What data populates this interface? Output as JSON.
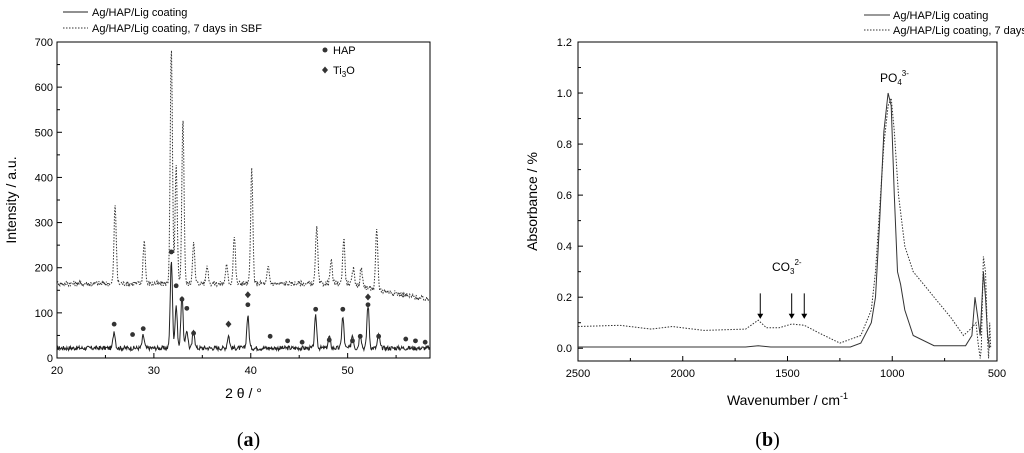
{
  "chart_data": [
    {
      "type": "line",
      "panel_label": "a",
      "xlabel": "2 θ / °",
      "ylabel": "Intensity / a.u.",
      "xlim": [
        20,
        58.5
      ],
      "ylim": [
        0,
        700
      ],
      "xticks": [
        "20",
        "30",
        "40",
        "50"
      ],
      "yticks": [
        "0",
        "100",
        "200",
        "300",
        "400",
        "500",
        "600",
        "700"
      ],
      "legend": [
        "Ag/HAP/Lig coating",
        "Ag/HAP/Lig coating, 7 days in SBF"
      ],
      "marker_legend": [
        {
          "symbol": "circle",
          "label": "HAP"
        },
        {
          "symbol": "diamond",
          "label": "Ti3O",
          "label_main": "Ti",
          "label_sub": "3",
          "label_tail": "O"
        }
      ],
      "series": [
        {
          "name": "Ag/HAP/Lig coating",
          "style": "solid",
          "baseline": 22,
          "peaks": [
            [
              25.9,
              38
            ],
            [
              28.9,
              28
            ],
            [
              31.8,
              195
            ],
            [
              32.3,
              95
            ],
            [
              32.9,
              118
            ],
            [
              33.4,
              40
            ],
            [
              34.1,
              40
            ],
            [
              37.7,
              28
            ],
            [
              39.7,
              72
            ],
            [
              46.7,
              70
            ],
            [
              48.1,
              26
            ],
            [
              49.5,
              68
            ],
            [
              50.5,
              30
            ],
            [
              51.3,
              33
            ],
            [
              52.1,
              95
            ],
            [
              53.2,
              30
            ]
          ]
        },
        {
          "name": "Ag/HAP/Lig coating, 7 days in SBF",
          "style": "dotted",
          "baseline": 165,
          "end_value": 128,
          "peaks": [
            [
              26.0,
              175
            ],
            [
              29.0,
              95
            ],
            [
              31.8,
              525
            ],
            [
              32.3,
              260
            ],
            [
              33.0,
              370
            ],
            [
              34.1,
              90
            ],
            [
              35.5,
              40
            ],
            [
              37.5,
              40
            ],
            [
              38.3,
              105
            ],
            [
              40.1,
              255
            ],
            [
              41.8,
              35
            ],
            [
              46.8,
              125
            ],
            [
              48.3,
              50
            ],
            [
              49.6,
              100
            ],
            [
              50.6,
              35
            ],
            [
              51.4,
              40
            ],
            [
              53.0,
              130
            ]
          ]
        }
      ],
      "hap_markers": [
        [
          25.9,
          75
        ],
        [
          27.8,
          52
        ],
        [
          28.9,
          65
        ],
        [
          31.8,
          235
        ],
        [
          32.3,
          160
        ],
        [
          32.9,
          130
        ],
        [
          33.4,
          110
        ],
        [
          34.1,
          55
        ],
        [
          39.7,
          118
        ],
        [
          42.0,
          48
        ],
        [
          43.8,
          38
        ],
        [
          45.3,
          35
        ],
        [
          46.7,
          108
        ],
        [
          48.1,
          40
        ],
        [
          49.5,
          108
        ],
        [
          50.5,
          38
        ],
        [
          51.3,
          48
        ],
        [
          52.1,
          118
        ],
        [
          53.2,
          48
        ],
        [
          56.0,
          42
        ],
        [
          57.0,
          38
        ],
        [
          58.0,
          35
        ]
      ],
      "ti3o_markers": [
        [
          37.7,
          75
        ],
        [
          39.7,
          140
        ],
        [
          52.1,
          135
        ]
      ]
    },
    {
      "type": "line",
      "panel_label": "b",
      "xlabel": "Wavenumber / cm",
      "xlabel_sup": "-1",
      "ylabel": "Absorbance / %",
      "xlim": [
        2500,
        500
      ],
      "ylim": [
        -0.05,
        1.2
      ],
      "xticks": [
        "2500",
        "2000",
        "1500",
        "1000",
        "500"
      ],
      "yticks": [
        "0.0",
        "0.2",
        "0.4",
        "0.6",
        "0.8",
        "1.0",
        "1.2"
      ],
      "legend": [
        "Ag/HAP/Lig coating",
        "Ag/HAP/Lig coating, 7 days"
      ],
      "annotations": {
        "po4": {
          "main": "PO",
          "sub": "4",
          "sup": "3-"
        },
        "co3": {
          "main": "CO",
          "sub": "3",
          "sup": "2-"
        }
      },
      "arrow_positions": [
        1630,
        1480,
        1420
      ],
      "series": [
        {
          "name": "Ag/HAP/Lig coating",
          "style": "solid",
          "points": [
            [
              2500,
              0.005
            ],
            [
              1700,
              0.005
            ],
            [
              1640,
              0.01
            ],
            [
              1580,
              0.005
            ],
            [
              1200,
              0.005
            ],
            [
              1150,
              0.02
            ],
            [
              1100,
              0.1
            ],
            [
              1080,
              0.2
            ],
            [
              1060,
              0.5
            ],
            [
              1040,
              0.85
            ],
            [
              1020,
              1.0
            ],
            [
              1005,
              0.95
            ],
            [
              990,
              0.6
            ],
            [
              975,
              0.3
            ],
            [
              960,
              0.25
            ],
            [
              940,
              0.15
            ],
            [
              900,
              0.05
            ],
            [
              800,
              0.01
            ],
            [
              650,
              0.01
            ],
            [
              620,
              0.05
            ],
            [
              605,
              0.2
            ],
            [
              595,
              0.14
            ],
            [
              580,
              0.05
            ],
            [
              565,
              0.3
            ],
            [
              555,
              0.2
            ],
            [
              545,
              0.05
            ],
            [
              535,
              0.0
            ]
          ]
        },
        {
          "name": "Ag/HAP/Lig coating, 7 days",
          "style": "dotted",
          "points": [
            [
              2500,
              0.085
            ],
            [
              2300,
              0.09
            ],
            [
              2150,
              0.075
            ],
            [
              2050,
              0.085
            ],
            [
              1900,
              0.07
            ],
            [
              1700,
              0.075
            ],
            [
              1640,
              0.11
            ],
            [
              1600,
              0.08
            ],
            [
              1540,
              0.08
            ],
            [
              1480,
              0.095
            ],
            [
              1420,
              0.09
            ],
            [
              1350,
              0.06
            ],
            [
              1250,
              0.02
            ],
            [
              1150,
              0.05
            ],
            [
              1100,
              0.15
            ],
            [
              1080,
              0.3
            ],
            [
              1060,
              0.55
            ],
            [
              1040,
              0.8
            ],
            [
              1020,
              0.95
            ],
            [
              1005,
              0.98
            ],
            [
              990,
              0.85
            ],
            [
              970,
              0.6
            ],
            [
              940,
              0.4
            ],
            [
              900,
              0.3
            ],
            [
              850,
              0.25
            ],
            [
              800,
              0.2
            ],
            [
              720,
              0.12
            ],
            [
              660,
              0.05
            ],
            [
              620,
              0.08
            ],
            [
              600,
              0.1
            ],
            [
              590,
              0.02
            ],
            [
              580,
              -0.04
            ],
            [
              575,
              0.0
            ],
            [
              565,
              0.36
            ],
            [
              555,
              0.3
            ],
            [
              545,
              0.03
            ],
            [
              540,
              -0.04
            ],
            [
              535,
              0.1
            ],
            [
              530,
              0.0
            ]
          ]
        }
      ]
    }
  ]
}
